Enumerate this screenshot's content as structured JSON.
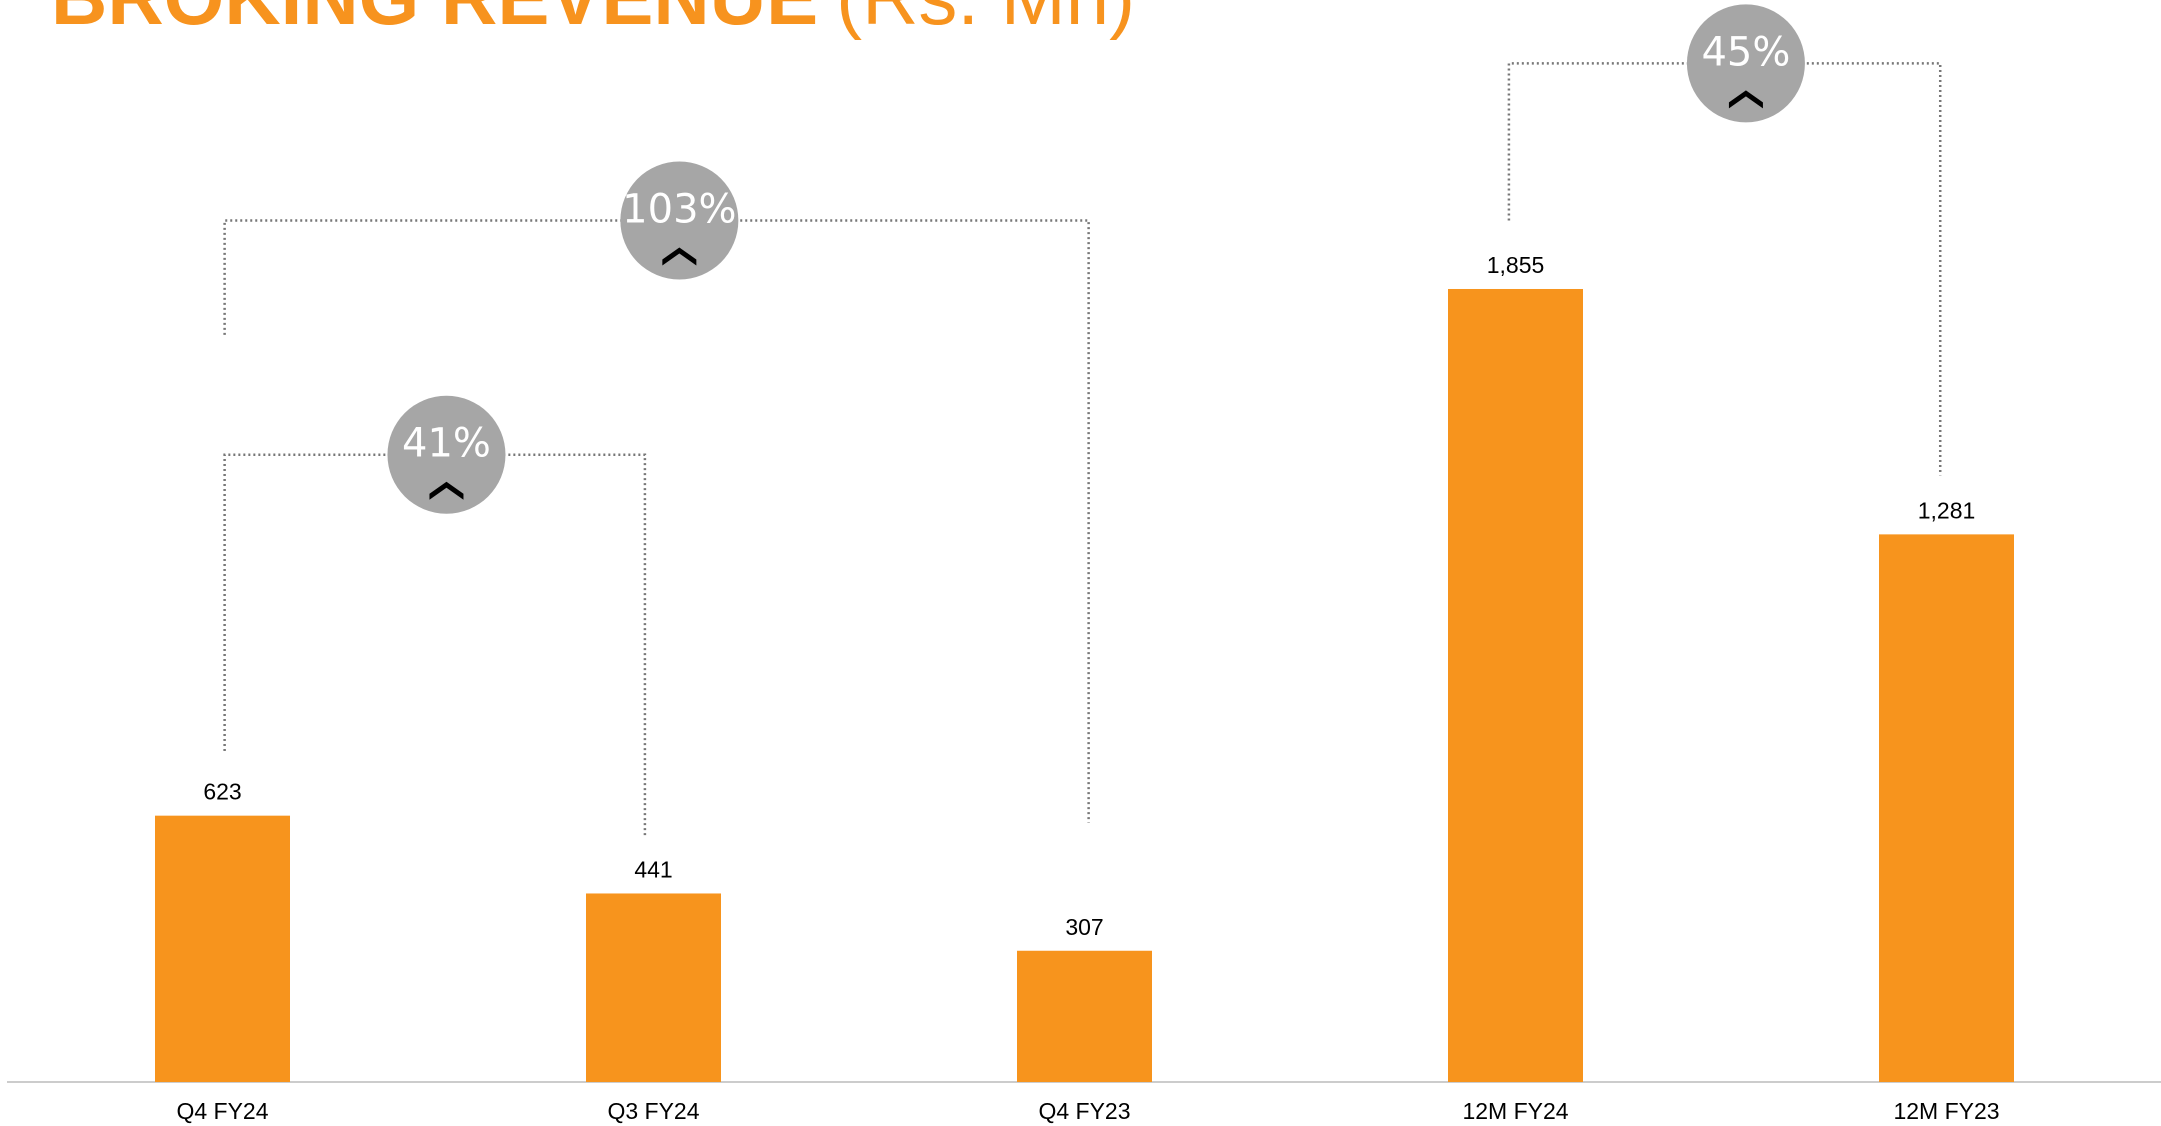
{
  "chart_data": {
    "type": "bar",
    "title": "BROKING REVENUE",
    "unit": "(Rs. Mn)",
    "categories": [
      "Q4 FY24",
      "Q3 FY24",
      "Q4 FY23",
      "12M FY24",
      "12M FY23"
    ],
    "values": [
      623,
      441,
      307,
      1855,
      1281
    ],
    "value_labels": [
      "623",
      "441",
      "307",
      "1,855",
      "1,281"
    ],
    "color": "#f7941d",
    "annotations": [
      "41%",
      "103%",
      "45%"
    ]
  }
}
